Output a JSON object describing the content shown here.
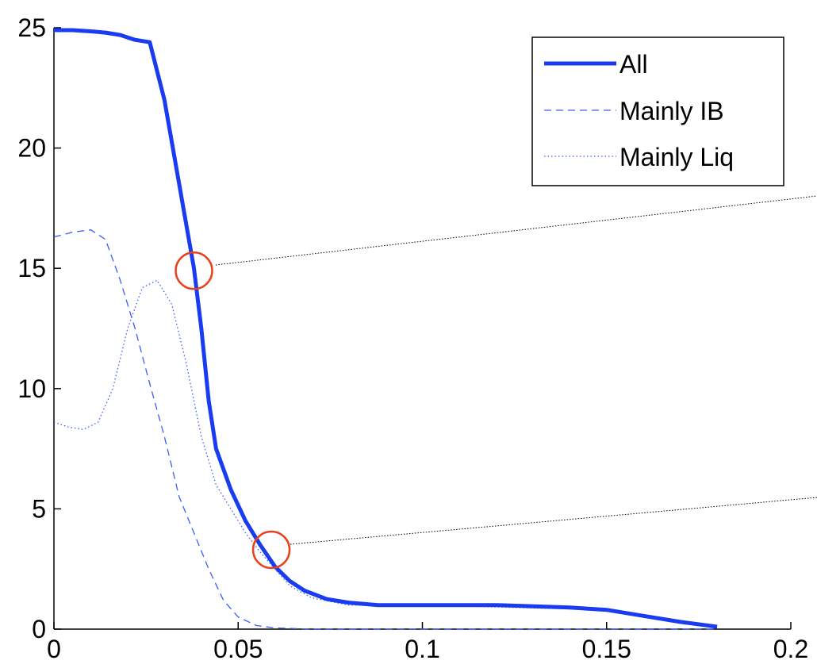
{
  "chart_data": {
    "type": "line",
    "title": "",
    "xlabel": "",
    "ylabel": "",
    "xlim": [
      0,
      0.2
    ],
    "ylim": [
      0,
      25
    ],
    "xticks": [
      "0",
      "0.05",
      "0.1",
      "0.15",
      "0.2"
    ],
    "yticks": [
      "0",
      "5",
      "10",
      "15",
      "20",
      "25"
    ],
    "grid": false,
    "legend_position": "top-right",
    "series": [
      {
        "name": "All",
        "style": "solid-thick",
        "color": "#1a3cf0",
        "x": [
          0,
          0.005,
          0.01,
          0.014,
          0.018,
          0.022,
          0.026,
          0.03,
          0.034,
          0.038,
          0.04,
          0.042,
          0.044,
          0.048,
          0.052,
          0.056,
          0.06,
          0.064,
          0.068,
          0.074,
          0.08,
          0.088,
          0.1,
          0.12,
          0.14,
          0.15,
          0.16,
          0.17,
          0.18
        ],
        "y": [
          24.9,
          24.9,
          24.85,
          24.8,
          24.7,
          24.5,
          24.4,
          22.0,
          18.5,
          15.0,
          12.5,
          9.5,
          7.5,
          5.8,
          4.5,
          3.5,
          2.6,
          2.0,
          1.6,
          1.25,
          1.1,
          1.0,
          1.0,
          1.0,
          0.9,
          0.8,
          0.55,
          0.3,
          0.1
        ]
      },
      {
        "name": "Mainly IB",
        "style": "dashed",
        "color": "#3a5cff",
        "x": [
          0,
          0.005,
          0.01,
          0.014,
          0.018,
          0.022,
          0.026,
          0.03,
          0.034,
          0.038,
          0.042,
          0.046,
          0.05,
          0.055,
          0.06,
          0.07,
          0.08,
          0.1,
          0.15,
          0.18
        ],
        "y": [
          16.3,
          16.5,
          16.6,
          16.2,
          14.5,
          12.5,
          10.2,
          8.0,
          5.5,
          4.0,
          2.5,
          1.2,
          0.5,
          0.15,
          0.05,
          0.0,
          0.0,
          0.0,
          0.0,
          0.0
        ]
      },
      {
        "name": "Mainly Liq",
        "style": "dotted",
        "color": "#3a5cff",
        "x": [
          0,
          0.004,
          0.008,
          0.012,
          0.016,
          0.02,
          0.024,
          0.028,
          0.032,
          0.036,
          0.04,
          0.044,
          0.048,
          0.052,
          0.056,
          0.06,
          0.064,
          0.07,
          0.08,
          0.1,
          0.15,
          0.18
        ],
        "y": [
          8.6,
          8.4,
          8.3,
          8.6,
          10.0,
          12.5,
          14.2,
          14.5,
          13.5,
          11.0,
          8.0,
          6.0,
          5.0,
          4.0,
          3.2,
          2.5,
          1.8,
          1.3,
          1.0,
          1.0,
          0.8,
          0.1
        ]
      }
    ],
    "annotations": [
      {
        "type": "circle",
        "x": 0.038,
        "y": 14.9,
        "color": "#e8401c"
      },
      {
        "type": "circle",
        "x": 0.059,
        "y": 3.3,
        "color": "#e8401c"
      }
    ]
  }
}
